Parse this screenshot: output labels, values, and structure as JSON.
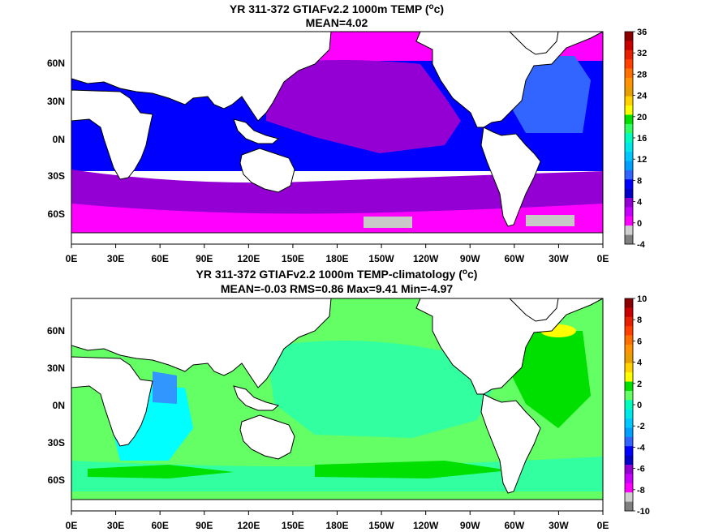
{
  "panels": [
    {
      "title_line1": "YR 311-372 GTIAFv2.2 1000m TEMP (",
      "title_unit_sup": "o",
      "title_unit_end": "c)",
      "title_line2": "MEAN=4.02",
      "lat_labels": [
        "60N",
        "30N",
        "0N",
        "30S",
        "60S"
      ],
      "lon_labels": [
        "0E",
        "30E",
        "60E",
        "90E",
        "120E",
        "150E",
        "180E",
        "150W",
        "120W",
        "90W",
        "60W",
        "30W",
        "0E"
      ],
      "colorbar_labels": [
        "36",
        "32",
        "28",
        "24",
        "20",
        "16",
        "12",
        "8",
        "4",
        "0",
        "-4"
      ],
      "colorbar_colors": [
        "#8b0000",
        "#c80000",
        "#e62000",
        "#ff4000",
        "#ff7000",
        "#ff9400",
        "#e8a000",
        "#ffd200",
        "#ffff00",
        "#00e000",
        "#32ff64",
        "#00ffbe",
        "#00e8e8",
        "#00c8ff",
        "#00a0ff",
        "#3264ff",
        "#0000ff",
        "#0000c8",
        "#9400d3",
        "#c800ff",
        "#ff00ff",
        "#d0d0d0",
        "#808080"
      ],
      "regions": {
        "magenta_band": "#ff00ff",
        "violet_pacific": "#9400d3",
        "blue_deep": "#0000ff",
        "blue_atlantic": "#3264ff",
        "gray_ice": "#c8c8c8"
      }
    },
    {
      "title_line1": "YR 311-372 GTIAFv2.2 1000m TEMP-climatology (",
      "title_unit_sup": "o",
      "title_unit_end": "c)",
      "title_line2": "MEAN=-0.03   RMS=0.86   Max=9.41   Min=-4.97",
      "lat_labels": [
        "60N",
        "30N",
        "0N",
        "30S",
        "60S"
      ],
      "lon_labels": [
        "0E",
        "30E",
        "60E",
        "90E",
        "120E",
        "150E",
        "180E",
        "150W",
        "120W",
        "90W",
        "60W",
        "30W",
        "0E"
      ],
      "colorbar_labels": [
        "10",
        "8",
        "6",
        "4",
        "2",
        "0",
        "-2",
        "-4",
        "-6",
        "-8",
        "-10"
      ],
      "colorbar_colors": [
        "#8b0000",
        "#c80000",
        "#e62000",
        "#ff4000",
        "#ff7000",
        "#ff9400",
        "#e8a000",
        "#ffd200",
        "#ffff00",
        "#00e000",
        "#64ff64",
        "#00ffbe",
        "#00e8e8",
        "#00c8ff",
        "#00a0ff",
        "#3264ff",
        "#0000ff",
        "#0000c8",
        "#9400d3",
        "#c800ff",
        "#ff00ff",
        "#d0d0d0",
        "#808080"
      ],
      "regions": {
        "light_green": "#64ff64",
        "green": "#00e000",
        "aqua_green": "#32ffa0",
        "cyan": "#00ffff",
        "blue": "#3296ff",
        "yellow": "#ffff00"
      }
    }
  ]
}
